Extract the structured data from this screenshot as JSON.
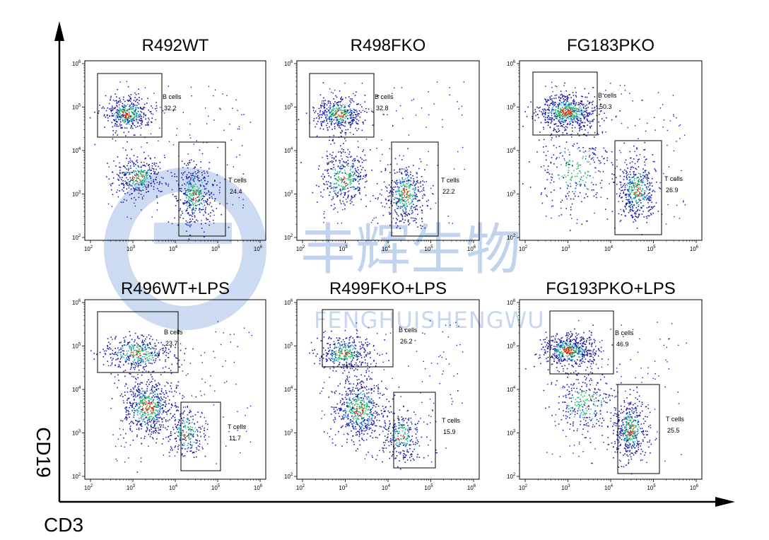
{
  "figure": {
    "x_axis_label": "CD3",
    "y_axis_label": "CD19",
    "watermark_cn": "丰辉生物",
    "watermark_en": "FENGHUISHENGWU",
    "colors": {
      "axis": "#000000",
      "watermark": "#8fb0e0",
      "dot_low": "#1a1aa8",
      "dot_mid": "#2ab0d0",
      "dot_high": "#e03010"
    }
  },
  "chart_data": [
    {
      "type": "scatter",
      "title": "R492WT",
      "xscale": "log",
      "yscale": "log",
      "xlim": [
        100,
        1000000
      ],
      "ylim": [
        100,
        1000000
      ],
      "xticks": [
        "10^2",
        "10^3",
        "10^4",
        "10^5",
        "10^6"
      ],
      "yticks": [
        "10^2",
        "10^3",
        "10^4",
        "10^5",
        "10^6"
      ],
      "gates": [
        {
          "name": "B cells",
          "percent": "32.2"
        },
        {
          "name": "T cells",
          "percent": "24.4"
        }
      ]
    },
    {
      "type": "scatter",
      "title": "R498FKO",
      "xscale": "log",
      "yscale": "log",
      "xlim": [
        100,
        1000000
      ],
      "ylim": [
        100,
        1000000
      ],
      "xticks": [
        "10^2",
        "10^3",
        "10^4",
        "10^5",
        "10^6"
      ],
      "yticks": [
        "10^2",
        "10^3",
        "10^4",
        "10^5",
        "10^6"
      ],
      "gates": [
        {
          "name": "B cells",
          "percent": "32.8"
        },
        {
          "name": "T cells",
          "percent": "22.2"
        }
      ]
    },
    {
      "type": "scatter",
      "title": "FG183PKO",
      "xscale": "log",
      "yscale": "log",
      "xlim": [
        100,
        1000000
      ],
      "ylim": [
        100,
        1000000
      ],
      "xticks": [
        "10^2",
        "10^3",
        "10^4",
        "10^5",
        "10^6"
      ],
      "yticks": [
        "10^2",
        "10^3",
        "10^4",
        "10^5",
        "10^6"
      ],
      "gates": [
        {
          "name": "B cells",
          "percent": "50.3"
        },
        {
          "name": "T cells",
          "percent": "26.9"
        }
      ]
    },
    {
      "type": "scatter",
      "title": "R496WT+LPS",
      "xscale": "log",
      "yscale": "log",
      "xlim": [
        100,
        1000000
      ],
      "ylim": [
        100,
        1000000
      ],
      "xticks": [
        "10^2",
        "10^3",
        "10^4",
        "10^5",
        "10^6"
      ],
      "yticks": [
        "10^2",
        "10^3",
        "10^4",
        "10^5",
        "10^6"
      ],
      "gates": [
        {
          "name": "B cells",
          "percent": "23.7"
        },
        {
          "name": "T cells",
          "percent": "11.7"
        }
      ]
    },
    {
      "type": "scatter",
      "title": "R499FKO+LPS",
      "xscale": "log",
      "yscale": "log",
      "xlim": [
        100,
        1000000
      ],
      "ylim": [
        100,
        1000000
      ],
      "xticks": [
        "10^2",
        "10^3",
        "10^4",
        "10^5",
        "10^6"
      ],
      "yticks": [
        "10^2",
        "10^3",
        "10^4",
        "10^5",
        "10^6"
      ],
      "gates": [
        {
          "name": "B cells",
          "percent": "26.2"
        },
        {
          "name": "T cells",
          "percent": "15.9"
        }
      ]
    },
    {
      "type": "scatter",
      "title": "FG193PKO+LPS",
      "xscale": "log",
      "yscale": "log",
      "xlim": [
        100,
        1000000
      ],
      "ylim": [
        100,
        1000000
      ],
      "xticks": [
        "10^2",
        "10^3",
        "10^4",
        "10^5",
        "10^6"
      ],
      "yticks": [
        "10^2",
        "10^3",
        "10^4",
        "10^5",
        "10^6"
      ],
      "gates": [
        {
          "name": "B cells",
          "percent": "46.9"
        },
        {
          "name": "T cells",
          "percent": "25.5"
        }
      ]
    }
  ]
}
